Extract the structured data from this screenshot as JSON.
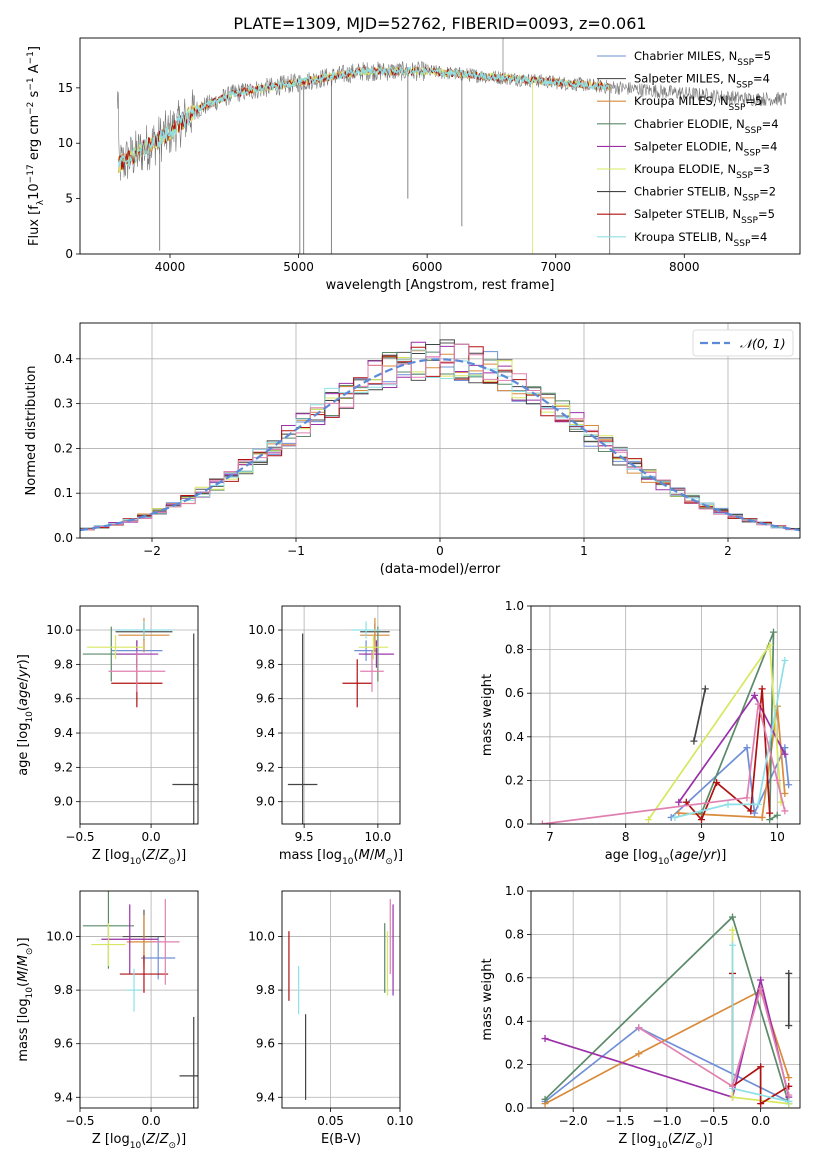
{
  "figure": {
    "title": "PLATE=1309, MJD=52762, FIBERID=0093, z=0.061"
  },
  "colors": {
    "chabrier_miles": "#6f8fd6",
    "salpeter_miles": "#555555",
    "kroupa_miles": "#d98a3a",
    "chabrier_elodie": "#5a8a68",
    "salpeter_elodie": "#9b30a8",
    "kroupa_elodie": "#d7e860",
    "chabrier_stelib": "#444444",
    "salpeter_stelib": "#b01010",
    "kroupa_stelib": "#8ee0e6",
    "pink": "#e080b0",
    "normal_curve": "#5a8ad8"
  },
  "legend_spectrum": [
    "Chabrier MILES, N$_{SSP}$=5",
    "Salpeter MILES, N$_{SSP}$=4",
    "Kroupa MILES, N$_{SSP}$=5",
    "Chabrier ELODIE, N$_{SSP}$=4",
    "Salpeter ELODIE, N$_{SSP}$=4",
    "Kroupa ELODIE, N$_{SSP}$=3",
    "Chabrier STELIB, N$_{SSP}$=2",
    "Salpeter STELIB, N$_{SSP}$=5",
    "Kroupa STELIB, N$_{SSP}$=4"
  ],
  "legend_labels_plain": [
    "Chabrier MILES, N",
    "Salpeter MILES, N",
    "Kroupa MILES, N",
    "Chabrier ELODIE, N",
    "Salpeter ELODIE, N",
    "Kroupa ELODIE, N",
    "Chabrier STELIB, N",
    "Salpeter STELIB, N",
    "Kroupa STELIB, N"
  ],
  "legend_sub": "SSP",
  "legend_counts": [
    "=5",
    "=4",
    "=5",
    "=4",
    "=4",
    "=3",
    "=2",
    "=5",
    "=4"
  ],
  "chart_data": [
    {
      "type": "line",
      "panel": "spectrum",
      "xlabel": "wavelength [Angstrom, rest frame]",
      "ylabel": "Flux [f_λ 10^-17 erg cm^-2 s^-1 A^-1]",
      "xlim": [
        3300,
        8900
      ],
      "ylim": [
        0,
        19.5
      ],
      "xticks": [
        4000,
        5000,
        6000,
        7000,
        8000
      ],
      "yticks": [
        0,
        5,
        10,
        15
      ],
      "continuum": [
        [
          3600,
          8.0
        ],
        [
          3800,
          9.5
        ],
        [
          4000,
          11.0
        ],
        [
          4200,
          13.0
        ],
        [
          4500,
          14.5
        ],
        [
          5000,
          15.5
        ],
        [
          5500,
          16.5
        ],
        [
          6000,
          16.5
        ],
        [
          6500,
          16.0
        ],
        [
          7000,
          15.5
        ],
        [
          7500,
          15.0
        ],
        [
          8000,
          14.5
        ],
        [
          8500,
          14.0
        ],
        [
          8800,
          14.0
        ]
      ]
    },
    {
      "type": "histogram",
      "panel": "residuals",
      "xlabel": "(data-model)/error",
      "ylabel": "Normed distribution",
      "xlim": [
        -2.5,
        2.5
      ],
      "ylim": [
        0,
        0.48
      ],
      "xticks": [
        -2,
        -1,
        0,
        1,
        2
      ],
      "yticks": [
        0.0,
        0.1,
        0.2,
        0.3,
        0.4
      ],
      "bin_width": 0.1,
      "legend": "N(0,1)"
    },
    {
      "type": "scatter",
      "panel": "age_vs_Z",
      "xlabel": "Z [log10(Z/Z_sun)]",
      "ylabel": "age [log10(age/yr)]",
      "xlim": [
        -0.5,
        0.33
      ],
      "ylim": [
        8.87,
        10.14
      ],
      "xticks": [
        -0.5,
        0.0
      ],
      "yticks": [
        9.0,
        9.2,
        9.4,
        9.6,
        9.8,
        10.0
      ],
      "points": [
        {
          "x": -0.1,
          "y": 9.88,
          "xerr": 0.18,
          "yerr": 0.06,
          "c": "chabrier_miles"
        },
        {
          "x": -0.05,
          "y": 9.99,
          "xerr": 0.2,
          "yerr": 0.05,
          "c": "salpeter_miles"
        },
        {
          "x": -0.05,
          "y": 9.97,
          "xerr": 0.18,
          "yerr": 0.1,
          "c": "kroupa_miles"
        },
        {
          "x": -0.28,
          "y": 9.86,
          "xerr": 0.2,
          "yerr": 0.16,
          "c": "chabrier_elodie"
        },
        {
          "x": -0.1,
          "y": 9.86,
          "xerr": 0.15,
          "yerr": 0.08,
          "c": "salpeter_elodie"
        },
        {
          "x": -0.25,
          "y": 9.9,
          "xerr": 0.2,
          "yerr": 0.07,
          "c": "kroupa_elodie"
        },
        {
          "x": 0.3,
          "y": 9.1,
          "xerr": 0.15,
          "yerr": 0.88,
          "c": "chabrier_stelib"
        },
        {
          "x": -0.1,
          "y": 9.69,
          "xerr": 0.18,
          "yerr": 0.14,
          "c": "salpeter_stelib"
        },
        {
          "x": -0.05,
          "y": 10.0,
          "xerr": 0.2,
          "yerr": 0.05,
          "c": "kroupa_stelib"
        },
        {
          "x": -0.1,
          "y": 9.76,
          "xerr": 0.2,
          "yerr": 0.12,
          "c": "pink"
        }
      ]
    },
    {
      "type": "scatter",
      "panel": "age_vs_mass",
      "xlabel": "mass [log10(M/M_sun)]",
      "ylabel": "",
      "xlim": [
        9.35,
        10.15
      ],
      "ylim": [
        8.87,
        10.14
      ],
      "xticks": [
        9.5,
        10.0
      ],
      "yticks": [
        9.0,
        9.2,
        9.4,
        9.6,
        9.8,
        10.0
      ],
      "points": [
        {
          "x": 9.92,
          "y": 9.88,
          "xerr": 0.08,
          "yerr": 0.06,
          "c": "chabrier_miles"
        },
        {
          "x": 9.98,
          "y": 9.99,
          "xerr": 0.1,
          "yerr": 0.05,
          "c": "salpeter_miles"
        },
        {
          "x": 9.98,
          "y": 9.97,
          "xerr": 0.1,
          "yerr": 0.1,
          "c": "kroupa_miles"
        },
        {
          "x": 10.0,
          "y": 9.86,
          "xerr": 0.1,
          "yerr": 0.16,
          "c": "chabrier_elodie"
        },
        {
          "x": 9.99,
          "y": 9.86,
          "xerr": 0.12,
          "yerr": 0.08,
          "c": "salpeter_elodie"
        },
        {
          "x": 9.97,
          "y": 9.9,
          "xerr": 0.1,
          "yerr": 0.07,
          "c": "kroupa_elodie"
        },
        {
          "x": 9.49,
          "y": 9.1,
          "xerr": 0.1,
          "yerr": 0.88,
          "c": "chabrier_stelib"
        },
        {
          "x": 9.86,
          "y": 9.69,
          "xerr": 0.1,
          "yerr": 0.14,
          "c": "salpeter_stelib"
        },
        {
          "x": 9.92,
          "y": 10.0,
          "xerr": 0.1,
          "yerr": 0.05,
          "c": "kroupa_stelib"
        },
        {
          "x": 9.96,
          "y": 9.76,
          "xerr": 0.08,
          "yerr": 0.12,
          "c": "pink"
        }
      ]
    },
    {
      "type": "line",
      "panel": "weight_vs_age",
      "xlabel": "age [log10(age/yr)]",
      "ylabel": "mass weight",
      "xlim": [
        6.75,
        10.3
      ],
      "ylim": [
        0,
        1
      ],
      "xticks": [
        7,
        8,
        9,
        10
      ],
      "yticks": [
        0.0,
        0.2,
        0.4,
        0.6,
        0.8,
        1.0
      ],
      "series": [
        {
          "c": "chabrier_miles",
          "pts": [
            [
              8.6,
              0.03
            ],
            [
              9.6,
              0.35
            ],
            [
              9.7,
              0.05
            ],
            [
              10.1,
              0.35
            ],
            [
              10.15,
              0.18
            ]
          ]
        },
        {
          "c": "kroupa_miles",
          "pts": [
            [
              8.7,
              0.05
            ],
            [
              9.8,
              0.03
            ],
            [
              10.0,
              0.54
            ],
            [
              10.1,
              0.14
            ]
          ]
        },
        {
          "c": "chabrier_elodie",
          "pts": [
            [
              9.0,
              0.05
            ],
            [
              9.95,
              0.88
            ],
            [
              9.9,
              0.02
            ],
            [
              10.0,
              0.04
            ]
          ]
        },
        {
          "c": "salpeter_elodie",
          "pts": [
            [
              8.7,
              0.1
            ],
            [
              9.7,
              0.59
            ],
            [
              10.1,
              0.32
            ]
          ]
        },
        {
          "c": "kroupa_elodie",
          "pts": [
            [
              8.3,
              0.02
            ],
            [
              9.9,
              0.82
            ],
            [
              10.05,
              0.1
            ]
          ]
        },
        {
          "c": "chabrier_stelib",
          "pts": [
            [
              8.9,
              0.38
            ],
            [
              9.05,
              0.62
            ]
          ]
        },
        {
          "c": "salpeter_stelib",
          "pts": [
            [
              8.8,
              0.1
            ],
            [
              9.0,
              0.02
            ],
            [
              9.2,
              0.19
            ],
            [
              9.65,
              0.06
            ],
            [
              9.8,
              0.62
            ],
            [
              9.9,
              0.05
            ]
          ]
        },
        {
          "c": "kroupa_stelib",
          "pts": [
            [
              8.65,
              0.03
            ],
            [
              9.35,
              0.09
            ],
            [
              9.75,
              0.09
            ],
            [
              10.1,
              0.75
            ]
          ]
        },
        {
          "c": "pink",
          "pts": [
            [
              6.9,
              0.0
            ],
            [
              9.6,
              0.12
            ],
            [
              9.75,
              0.55
            ],
            [
              10.0,
              0.2
            ],
            [
              10.1,
              0.06
            ]
          ]
        }
      ]
    },
    {
      "type": "scatter",
      "panel": "mass_vs_Z",
      "xlabel": "Z [log10(Z/Z_sun)]",
      "ylabel": "mass [log10(M/M_sun)]",
      "xlim": [
        -0.5,
        0.33
      ],
      "ylim": [
        9.36,
        10.17
      ],
      "xticks": [
        -0.5,
        0.0
      ],
      "yticks": [
        9.4,
        9.6,
        9.8,
        10.0
      ],
      "points": [
        {
          "x": 0.05,
          "y": 9.92,
          "xerr": 0.12,
          "yerr": 0.08,
          "c": "chabrier_miles"
        },
        {
          "x": -0.05,
          "y": 10.0,
          "xerr": 0.15,
          "yerr": 0.1,
          "c": "salpeter_miles"
        },
        {
          "x": -0.05,
          "y": 9.98,
          "xerr": 0.12,
          "yerr": 0.1,
          "c": "kroupa_miles"
        },
        {
          "x": -0.3,
          "y": 10.04,
          "xerr": 0.18,
          "yerr": 0.16,
          "c": "chabrier_elodie"
        },
        {
          "x": -0.15,
          "y": 9.99,
          "xerr": 0.2,
          "yerr": 0.13,
          "c": "salpeter_elodie"
        },
        {
          "x": -0.3,
          "y": 9.97,
          "xerr": 0.12,
          "yerr": 0.08,
          "c": "kroupa_elodie"
        },
        {
          "x": 0.3,
          "y": 9.48,
          "xerr": 0.1,
          "yerr": 0.22,
          "c": "chabrier_stelib"
        },
        {
          "x": -0.05,
          "y": 9.86,
          "xerr": 0.17,
          "yerr": 0.07,
          "c": "salpeter_stelib"
        },
        {
          "x": -0.12,
          "y": 9.8,
          "xerr": 0.05,
          "yerr": 0.08,
          "c": "kroupa_stelib"
        },
        {
          "x": 0.1,
          "y": 9.98,
          "xerr": 0.1,
          "yerr": 0.16,
          "c": "pink"
        }
      ]
    },
    {
      "type": "scatter",
      "panel": "mass_vs_EBV",
      "xlabel": "E(B-V)",
      "ylabel": "",
      "xlim": [
        0.015,
        0.1
      ],
      "ylim": [
        9.36,
        10.17
      ],
      "xticks": [
        0.05,
        0.1
      ],
      "yticks": [
        9.4,
        9.6,
        9.8,
        10.0
      ],
      "points": [
        {
          "x": 0.089,
          "y": 9.92,
          "yerr": 0.13,
          "c": "chabrier_elodie"
        },
        {
          "x": 0.091,
          "y": 9.9,
          "yerr": 0.12,
          "c": "kroupa_elodie"
        },
        {
          "x": 0.093,
          "y": 10.0,
          "yerr": 0.14,
          "c": "pink"
        },
        {
          "x": 0.095,
          "y": 9.95,
          "yerr": 0.17,
          "c": "salpeter_elodie"
        },
        {
          "x": 0.02,
          "y": 9.89,
          "yerr": 0.13,
          "c": "salpeter_stelib"
        },
        {
          "x": 0.027,
          "y": 9.8,
          "yerr": 0.09,
          "c": "kroupa_stelib"
        },
        {
          "x": 0.032,
          "y": 9.55,
          "yerr": 0.16,
          "c": "chabrier_stelib"
        }
      ]
    },
    {
      "type": "line",
      "panel": "weight_vs_Z",
      "xlabel": "Z [log10(Z/Z_sun)]",
      "ylabel": "mass weight",
      "xlim": [
        -2.45,
        0.42
      ],
      "ylim": [
        0,
        1
      ],
      "xticks": [
        -2.0,
        -1.5,
        -1.0,
        -0.5,
        0.0
      ],
      "yticks": [
        0.0,
        0.2,
        0.4,
        0.6,
        0.8,
        1.0
      ],
      "series": [
        {
          "c": "chabrier_miles",
          "pts": [
            [
              -2.3,
              0.03
            ],
            [
              -1.3,
              0.37
            ],
            [
              0.3,
              0.03
            ]
          ]
        },
        {
          "c": "kroupa_miles",
          "pts": [
            [
              -2.3,
              0.02
            ],
            [
              -1.3,
              0.25
            ],
            [
              0.0,
              0.54
            ],
            [
              0.3,
              0.14
            ]
          ]
        },
        {
          "c": "chabrier_elodie",
          "pts": [
            [
              -2.3,
              0.04
            ],
            [
              -0.3,
              0.88
            ],
            [
              0.3,
              0.02
            ]
          ]
        },
        {
          "c": "salpeter_elodie",
          "pts": [
            [
              -2.3,
              0.32
            ],
            [
              -0.3,
              0.05
            ],
            [
              0.0,
              0.59
            ],
            [
              0.3,
              0.05
            ]
          ]
        },
        {
          "c": "kroupa_elodie",
          "pts": [
            [
              -0.3,
              0.82
            ],
            [
              -0.3,
              0.05
            ],
            [
              0.3,
              0.02
            ]
          ]
        },
        {
          "c": "chabrier_stelib",
          "pts": [
            [
              0.3,
              0.38
            ],
            [
              0.3,
              0.62
            ]
          ]
        },
        {
          "c": "salpeter_stelib",
          "pts": [
            [
              -0.3,
              0.62
            ],
            [
              -0.3,
              0.1
            ],
            [
              0.0,
              0.19
            ],
            [
              0.0,
              0.02
            ],
            [
              0.3,
              0.1
            ]
          ]
        },
        {
          "c": "kroupa_stelib",
          "pts": [
            [
              -0.3,
              0.75
            ],
            [
              -0.3,
              0.09
            ],
            [
              0.3,
              0.03
            ]
          ]
        },
        {
          "c": "pink",
          "pts": [
            [
              -1.3,
              0.37
            ],
            [
              -0.3,
              0.1
            ],
            [
              0.0,
              0.55
            ],
            [
              0.3,
              0.06
            ]
          ]
        }
      ]
    }
  ]
}
